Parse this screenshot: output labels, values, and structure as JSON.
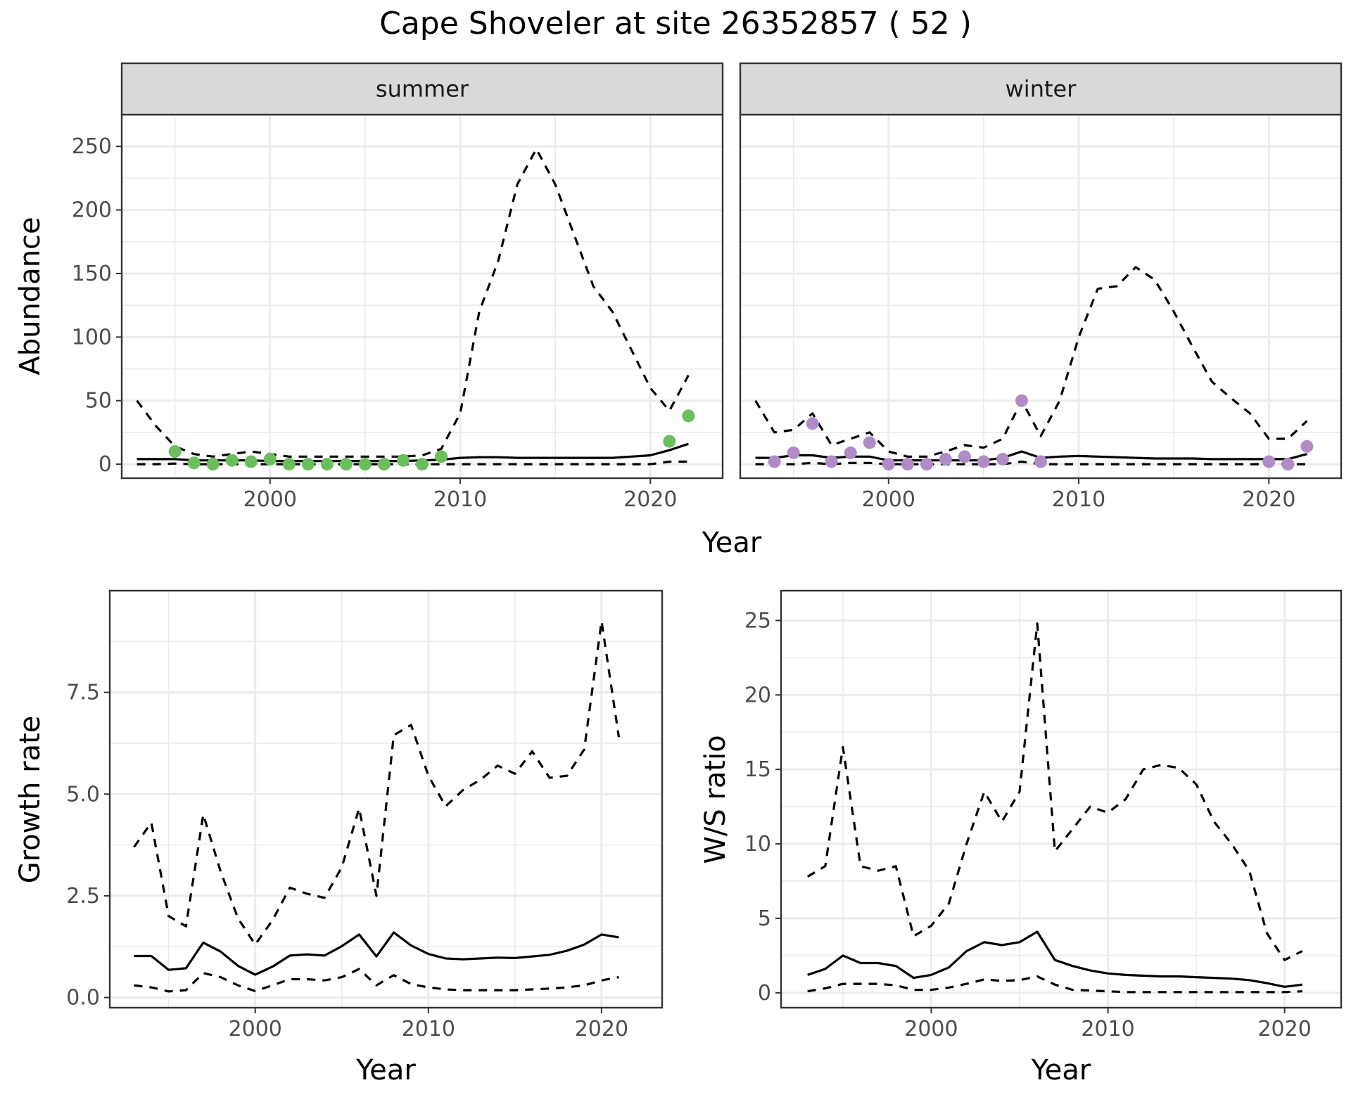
{
  "title": "Cape Shoveler at site 26352857 ( 52 )",
  "chart_data": [
    {
      "id": "abundance",
      "type": "line",
      "facets": [
        "summer",
        "winter"
      ],
      "xlabel": "Year",
      "ylabel": "Abundance",
      "xlim": [
        1992.2,
        2023.8
      ],
      "ylim": [
        -11,
        275
      ],
      "xticks": [
        2000,
        2010,
        2020
      ],
      "xtick_labels": [
        "2000",
        "2010",
        "2020"
      ],
      "yticks": [
        0,
        50,
        100,
        150,
        200,
        250
      ],
      "ytick_labels": [
        "0",
        "50",
        "100",
        "150",
        "200",
        "250"
      ],
      "grid": true,
      "panels": [
        {
          "facet": "summer",
          "point_color": "#6ABE5C",
          "years": [
            1993,
            1994,
            1995,
            1996,
            1997,
            1998,
            1999,
            2000,
            2001,
            2002,
            2003,
            2004,
            2005,
            2006,
            2007,
            2008,
            2009,
            2010,
            2011,
            2012,
            2013,
            2014,
            2015,
            2016,
            2017,
            2018,
            2019,
            2020,
            2021,
            2022
          ],
          "estimate": [
            4,
            4,
            4,
            3,
            3,
            3,
            3,
            2.5,
            2.5,
            2.5,
            2.5,
            2.5,
            2.5,
            2.5,
            2.5,
            3,
            3.5,
            5,
            5.5,
            5.5,
            5,
            5,
            5,
            5,
            5,
            5,
            6,
            7,
            11,
            16
          ],
          "upper": [
            50,
            30,
            14,
            8,
            6,
            8,
            10,
            8,
            6,
            6,
            6,
            6,
            6,
            6,
            6,
            7,
            12,
            40,
            120,
            160,
            220,
            248,
            220,
            180,
            140,
            120,
            90,
            60,
            42,
            70
          ],
          "lower": [
            0,
            0,
            0.5,
            0,
            0,
            0,
            0,
            0,
            0,
            0,
            0,
            0,
            0,
            0,
            0,
            0,
            0,
            0,
            0,
            0,
            0,
            0,
            0,
            0,
            0,
            0,
            0,
            0,
            2,
            2
          ],
          "points": {
            "x": [
              1995,
              1996,
              1997,
              1998,
              1999,
              2000,
              2001,
              2002,
              2003,
              2004,
              2005,
              2006,
              2007,
              2008,
              2009,
              2021,
              2022
            ],
            "y": [
              10,
              1,
              0,
              3,
              2,
              4,
              0,
              0,
              0,
              0,
              0,
              0,
              3,
              0,
              6,
              18,
              38
            ]
          }
        },
        {
          "facet": "winter",
          "point_color": "#B18BC7",
          "years": [
            1993,
            1994,
            1995,
            1996,
            1997,
            1998,
            1999,
            2000,
            2001,
            2002,
            2003,
            2004,
            2005,
            2006,
            2007,
            2008,
            2009,
            2010,
            2011,
            2012,
            2013,
            2014,
            2015,
            2016,
            2017,
            2018,
            2019,
            2020,
            2021,
            2022
          ],
          "estimate": [
            5,
            5,
            7,
            7,
            5,
            6,
            6,
            3,
            3,
            3,
            3,
            3,
            3,
            5,
            10,
            5,
            6,
            6.5,
            6,
            5.5,
            5,
            4.5,
            4.5,
            4.5,
            4,
            4,
            4,
            4,
            4,
            8
          ],
          "upper": [
            50,
            25,
            27,
            40,
            15,
            20,
            25,
            10,
            6,
            6,
            10,
            15,
            13,
            20,
            50,
            22,
            50,
            100,
            138,
            140,
            155,
            145,
            120,
            92,
            65,
            52,
            40,
            20,
            20,
            34
          ],
          "lower": [
            0,
            0,
            0,
            1,
            0,
            1,
            1,
            0,
            0,
            0,
            0,
            0,
            0,
            0,
            2,
            0,
            0,
            0,
            0,
            0,
            0,
            0,
            0,
            0,
            0,
            0,
            0,
            0,
            0,
            0
          ],
          "points": {
            "x": [
              1994,
              1995,
              1996,
              1997,
              1998,
              1999,
              2000,
              2001,
              2002,
              2003,
              2004,
              2005,
              2006,
              2007,
              2008,
              2020,
              2021,
              2022
            ],
            "y": [
              2,
              9,
              32,
              2,
              9,
              17,
              0,
              0,
              0,
              4,
              6,
              2,
              4,
              50,
              2,
              2,
              0,
              14
            ]
          }
        }
      ]
    },
    {
      "id": "growth",
      "type": "line",
      "xlabel": "Year",
      "ylabel": "Growth rate",
      "xlim": [
        1991.6,
        2023.5
      ],
      "ylim": [
        -0.25,
        10.0
      ],
      "xticks": [
        2000,
        2010,
        2020
      ],
      "xtick_labels": [
        "2000",
        "2010",
        "2020"
      ],
      "yticks": [
        0,
        2.5,
        5,
        7.5
      ],
      "ytick_labels": [
        "0.0",
        "2.5",
        "5.0",
        "7.5"
      ],
      "grid": true,
      "years": [
        1993,
        1994,
        1995,
        1996,
        1997,
        1998,
        1999,
        2000,
        2001,
        2002,
        2003,
        2004,
        2005,
        2006,
        2007,
        2008,
        2009,
        2010,
        2011,
        2012,
        2013,
        2014,
        2015,
        2016,
        2017,
        2018,
        2019,
        2020,
        2021
      ],
      "estimate": [
        1.02,
        1.02,
        0.68,
        0.72,
        1.35,
        1.13,
        0.78,
        0.56,
        0.76,
        1.03,
        1.06,
        1.03,
        1.26,
        1.55,
        1.01,
        1.6,
        1.28,
        1.07,
        0.96,
        0.94,
        0.96,
        0.98,
        0.97,
        1.01,
        1.05,
        1.15,
        1.3,
        1.55,
        1.48
      ],
      "upper": [
        3.7,
        4.3,
        2.0,
        1.75,
        4.5,
        3.1,
        1.95,
        1.3,
        1.9,
        2.7,
        2.55,
        2.45,
        3.2,
        4.65,
        2.5,
        6.45,
        6.7,
        5.45,
        4.7,
        5.1,
        5.35,
        5.7,
        5.5,
        6.05,
        5.4,
        5.45,
        6.1,
        9.25,
        6.4
      ],
      "lower": [
        0.3,
        0.25,
        0.15,
        0.18,
        0.6,
        0.5,
        0.3,
        0.16,
        0.3,
        0.45,
        0.45,
        0.42,
        0.5,
        0.7,
        0.3,
        0.55,
        0.33,
        0.25,
        0.2,
        0.18,
        0.18,
        0.18,
        0.18,
        0.2,
        0.22,
        0.25,
        0.3,
        0.42,
        0.5
      ]
    },
    {
      "id": "ratio",
      "type": "line",
      "xlabel": "Year",
      "ylabel": "W/S ratio",
      "xlim": [
        1991.5,
        2023.2
      ],
      "ylim": [
        -1.0,
        27.0
      ],
      "xticks": [
        2000,
        2010,
        2020
      ],
      "xtick_labels": [
        "2000",
        "2010",
        "2020"
      ],
      "yticks": [
        0,
        5,
        10,
        15,
        20,
        25
      ],
      "ytick_labels": [
        "0",
        "5",
        "10",
        "15",
        "20",
        "25"
      ],
      "grid": true,
      "years": [
        1993,
        1994,
        1995,
        1996,
        1997,
        1998,
        1999,
        2000,
        2001,
        2002,
        2003,
        2004,
        2005,
        2006,
        2007,
        2008,
        2009,
        2010,
        2011,
        2012,
        2013,
        2014,
        2015,
        2016,
        2017,
        2018,
        2019,
        2020,
        2021
      ],
      "estimate": [
        1.2,
        1.6,
        2.5,
        2.0,
        2.0,
        1.8,
        1.0,
        1.2,
        1.7,
        2.8,
        3.4,
        3.2,
        3.4,
        4.1,
        2.2,
        1.8,
        1.5,
        1.3,
        1.2,
        1.15,
        1.1,
        1.1,
        1.05,
        1.0,
        0.95,
        0.85,
        0.65,
        0.4,
        0.55
      ],
      "upper": [
        7.8,
        8.5,
        16.5,
        8.5,
        8.2,
        8.5,
        3.8,
        4.5,
        6.0,
        10.0,
        13.5,
        11.5,
        13.5,
        24.8,
        9.5,
        11.0,
        12.5,
        12.1,
        13.0,
        15.0,
        15.3,
        15.1,
        14.0,
        11.5,
        10.0,
        8.2,
        4.0,
        2.2,
        2.8
      ],
      "lower": [
        0.1,
        0.3,
        0.6,
        0.6,
        0.6,
        0.5,
        0.2,
        0.2,
        0.35,
        0.6,
        0.9,
        0.8,
        0.85,
        1.1,
        0.55,
        0.2,
        0.15,
        0.1,
        0.05,
        0.05,
        0.05,
        0.05,
        0.05,
        0.05,
        0.05,
        0.05,
        0.05,
        0.05,
        0.1
      ]
    }
  ]
}
